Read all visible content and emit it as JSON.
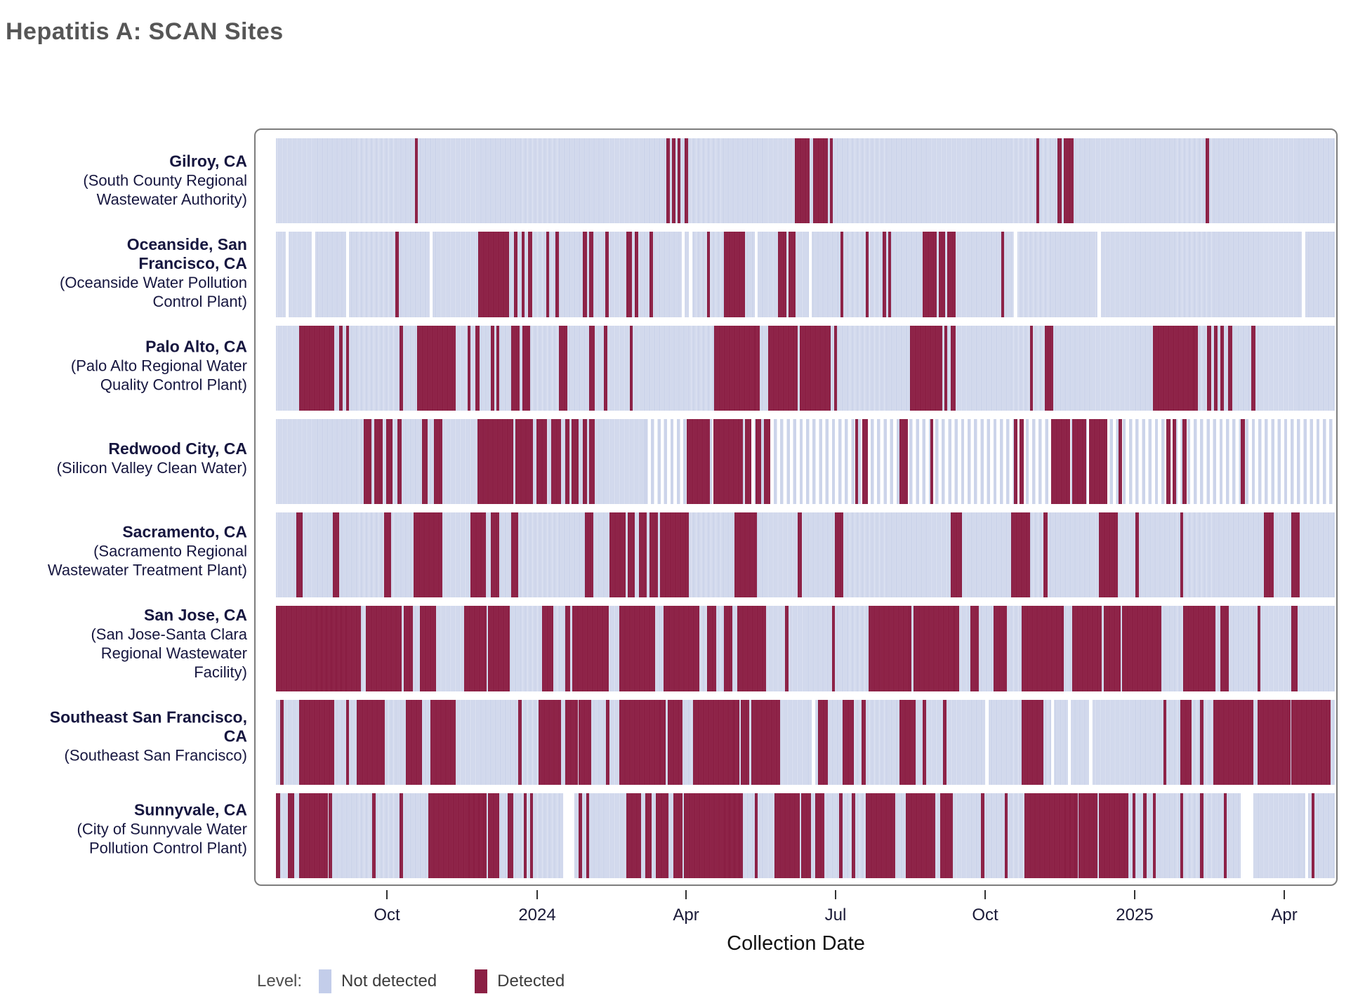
{
  "title": "Hepatitis A: SCAN Sites",
  "axis": {
    "x_label": "Collection Date",
    "ticks": [
      {
        "label": "Oct",
        "pos": 10.48
      },
      {
        "label": "2024",
        "pos": 24.67
      },
      {
        "label": "Apr",
        "pos": 38.73
      },
      {
        "label": "Jul",
        "pos": 52.85
      },
      {
        "label": "Oct",
        "pos": 66.98
      },
      {
        "label": "2025",
        "pos": 81.1
      },
      {
        "label": "Apr",
        "pos": 95.23
      }
    ]
  },
  "legend": {
    "label": "Level:",
    "items": [
      {
        "label": "Not detected",
        "color": "#c3cdea"
      },
      {
        "label": "Detected",
        "color": "#8b1f44"
      }
    ]
  },
  "colors": {
    "not_detected": "#ccd4ea",
    "detected": "#8b1f44",
    "missing": "#ffffff",
    "panel_border": "#7d7d7d",
    "label_text": "#16163f",
    "title_text": "#565656"
  },
  "chart_data": {
    "type": "heatmap",
    "x_unit": "collection date (daily tiles)",
    "x_range_approx": [
      "Jul 2023",
      "May 2025"
    ],
    "states": {
      "d": "Detected",
      "background": "Not detected",
      "gap": "No sample",
      "sparse": "Intermittent sampling"
    },
    "sites": [
      {
        "city": "Gilroy, CA",
        "facility": "(South County Regional Wastewater Authority)",
        "detected": [
          [
            13.1,
            13.4
          ],
          [
            36.9,
            37.2
          ],
          [
            37.4,
            37.7
          ],
          [
            37.9,
            38.2
          ],
          [
            38.6,
            38.9
          ],
          [
            49.0,
            50.4
          ],
          [
            50.7,
            52.1
          ],
          [
            52.3,
            52.6
          ],
          [
            71.8,
            72.1
          ],
          [
            73.8,
            74.2
          ],
          [
            74.4,
            75.3
          ],
          [
            87.8,
            88.1
          ]
        ],
        "gaps": [],
        "sparse": []
      },
      {
        "city": "Oceanside, San Francisco, CA",
        "facility": "(Oceanside Water Pollution Control Plant)",
        "detected": [
          [
            11.3,
            11.6
          ],
          [
            19.1,
            22.0
          ],
          [
            22.5,
            22.8
          ],
          [
            23.2,
            23.5
          ],
          [
            23.8,
            24.2
          ],
          [
            25.5,
            25.8
          ],
          [
            26.4,
            26.7
          ],
          [
            29.0,
            29.4
          ],
          [
            29.6,
            30.0
          ],
          [
            31.1,
            31.4
          ],
          [
            33.1,
            33.6
          ],
          [
            33.9,
            34.2
          ],
          [
            35.3,
            35.6
          ],
          [
            40.7,
            41.0
          ],
          [
            42.3,
            44.3
          ],
          [
            47.4,
            48.2
          ],
          [
            48.4,
            49.1
          ],
          [
            53.3,
            53.6
          ],
          [
            55.7,
            56.0
          ],
          [
            57.3,
            57.6
          ],
          [
            57.8,
            58.1
          ],
          [
            61.1,
            62.4
          ],
          [
            62.6,
            63.2
          ],
          [
            63.4,
            64.2
          ],
          [
            68.5,
            68.8
          ]
        ],
        "gaps": [
          [
            0.9,
            1.2
          ],
          [
            3.4,
            3.7
          ],
          [
            6.6,
            6.9
          ],
          [
            14.5,
            14.8
          ],
          [
            38.3,
            38.6
          ],
          [
            39.0,
            39.3
          ],
          [
            45.2,
            45.5
          ],
          [
            50.3,
            50.6
          ],
          [
            69.7,
            70.0
          ],
          [
            77.6,
            77.9
          ],
          [
            96.9,
            97.2
          ]
        ],
        "sparse": []
      },
      {
        "city": "Palo Alto, CA",
        "facility": "(Palo Alto Regional Water Quality Control Plant)",
        "detected": [
          [
            2.2,
            5.5
          ],
          [
            6.0,
            6.3
          ],
          [
            6.6,
            6.9
          ],
          [
            11.7,
            12.0
          ],
          [
            13.3,
            17.0
          ],
          [
            18.1,
            18.4
          ],
          [
            18.8,
            19.2
          ],
          [
            20.3,
            20.6
          ],
          [
            20.8,
            21.1
          ],
          [
            22.2,
            23.0
          ],
          [
            23.3,
            24.0
          ],
          [
            26.7,
            27.5
          ],
          [
            29.6,
            30.1
          ],
          [
            31.0,
            31.3
          ],
          [
            33.4,
            33.7
          ],
          [
            41.4,
            45.7
          ],
          [
            46.5,
            49.3
          ],
          [
            49.5,
            52.4
          ],
          [
            52.7,
            53.0
          ],
          [
            59.9,
            62.9
          ],
          [
            63.1,
            63.4
          ],
          [
            63.7,
            64.2
          ],
          [
            71.2,
            71.5
          ],
          [
            72.6,
            73.4
          ],
          [
            82.8,
            87.1
          ],
          [
            87.9,
            88.3
          ],
          [
            88.6,
            88.9
          ],
          [
            89.2,
            89.5
          ],
          [
            89.9,
            90.3
          ],
          [
            92.1,
            92.5
          ]
        ],
        "gaps": [],
        "sparse": []
      },
      {
        "city": "Redwood City, CA",
        "facility": "(Silicon Valley Clean Water)",
        "detected": [
          [
            8.3,
            9.0
          ],
          [
            9.3,
            10.1
          ],
          [
            10.4,
            11.0
          ],
          [
            11.5,
            11.9
          ],
          [
            13.8,
            14.3
          ],
          [
            14.9,
            15.7
          ],
          [
            19.0,
            22.4
          ],
          [
            22.6,
            24.3
          ],
          [
            24.6,
            25.6
          ],
          [
            26.0,
            26.9
          ],
          [
            27.3,
            27.7
          ],
          [
            27.9,
            28.6
          ],
          [
            29.0,
            29.4
          ],
          [
            29.6,
            30.1
          ],
          [
            38.8,
            41.0
          ],
          [
            41.3,
            44.1
          ],
          [
            44.3,
            44.9
          ],
          [
            45.3,
            45.8
          ],
          [
            46.1,
            46.7
          ],
          [
            54.7,
            55.0
          ],
          [
            55.4,
            55.9
          ],
          [
            58.9,
            59.7
          ],
          [
            61.8,
            62.1
          ],
          [
            69.7,
            70.0
          ],
          [
            70.2,
            70.6
          ],
          [
            73.2,
            75.0
          ],
          [
            75.2,
            76.5
          ],
          [
            76.8,
            78.5
          ],
          [
            79.6,
            79.9
          ],
          [
            84.1,
            84.5
          ],
          [
            84.7,
            85.0
          ],
          [
            85.6,
            86.0
          ],
          [
            91.1,
            91.5
          ]
        ],
        "gaps": [],
        "sparse": [
          [
            34.8,
            100
          ]
        ]
      },
      {
        "city": "Sacramento, CA",
        "facility": "(Sacramento Regional Wastewater Treatment Plant)",
        "detected": [
          [
            1.9,
            2.5
          ],
          [
            5.4,
            6.0
          ],
          [
            10.2,
            10.9
          ],
          [
            13.0,
            15.7
          ],
          [
            18.4,
            19.8
          ],
          [
            20.3,
            21.1
          ],
          [
            22.2,
            22.9
          ],
          [
            29.2,
            30.0
          ],
          [
            31.5,
            33.0
          ],
          [
            33.2,
            33.9
          ],
          [
            34.3,
            35.0
          ],
          [
            35.3,
            36.1
          ],
          [
            36.3,
            39.0
          ],
          [
            43.3,
            45.4
          ],
          [
            49.3,
            49.7
          ],
          [
            52.8,
            53.6
          ],
          [
            63.7,
            64.8
          ],
          [
            69.4,
            71.2
          ],
          [
            72.5,
            72.9
          ],
          [
            77.7,
            79.5
          ],
          [
            81.2,
            81.5
          ],
          [
            85.4,
            85.7
          ],
          [
            93.3,
            94.2
          ],
          [
            95.9,
            96.7
          ]
        ],
        "gaps": [],
        "sparse": []
      },
      {
        "city": "San Jose, CA",
        "facility": "(San Jose-Santa Clara Regional Wastewater Facility)",
        "detected": [
          [
            0.0,
            8.0
          ],
          [
            8.5,
            11.9
          ],
          [
            12.1,
            12.9
          ],
          [
            13.6,
            15.1
          ],
          [
            17.8,
            19.9
          ],
          [
            20.0,
            22.1
          ],
          [
            25.1,
            26.2
          ],
          [
            27.3,
            27.8
          ],
          [
            28.0,
            31.4
          ],
          [
            32.4,
            35.8
          ],
          [
            36.6,
            40.0
          ],
          [
            40.7,
            41.6
          ],
          [
            42.3,
            43.1
          ],
          [
            43.6,
            46.3
          ],
          [
            48.1,
            48.4
          ],
          [
            52.5,
            52.8
          ],
          [
            56.0,
            60.0
          ],
          [
            60.2,
            64.5
          ],
          [
            65.6,
            66.4
          ],
          [
            67.8,
            69.0
          ],
          [
            70.4,
            74.4
          ],
          [
            75.2,
            78.0
          ],
          [
            78.2,
            79.8
          ],
          [
            79.9,
            83.6
          ],
          [
            85.7,
            88.7
          ],
          [
            89.2,
            90.0
          ],
          [
            92.7,
            93.0
          ],
          [
            95.9,
            96.5
          ]
        ],
        "gaps": [],
        "sparse": []
      },
      {
        "city": "Southeast San Francisco, CA",
        "facility": "(Southeast San Francisco)",
        "detected": [
          [
            0.4,
            0.7
          ],
          [
            2.2,
            5.5
          ],
          [
            6.6,
            6.9
          ],
          [
            7.6,
            10.3
          ],
          [
            12.3,
            13.8
          ],
          [
            14.6,
            17.0
          ],
          [
            22.9,
            23.2
          ],
          [
            24.8,
            26.9
          ],
          [
            27.3,
            28.5
          ],
          [
            28.6,
            29.8
          ],
          [
            31.2,
            31.5
          ],
          [
            32.4,
            36.8
          ],
          [
            37.0,
            38.4
          ],
          [
            39.4,
            43.8
          ],
          [
            43.9,
            44.7
          ],
          [
            44.9,
            47.6
          ],
          [
            51.2,
            52.1
          ],
          [
            53.5,
            54.6
          ],
          [
            55.3,
            55.7
          ],
          [
            58.9,
            60.4
          ],
          [
            61.1,
            61.4
          ],
          [
            63.0,
            63.3
          ],
          [
            70.4,
            72.5
          ],
          [
            83.8,
            84.1
          ],
          [
            85.4,
            86.5
          ],
          [
            87.3,
            87.6
          ],
          [
            88.5,
            92.3
          ],
          [
            92.7,
            95.8
          ],
          [
            95.9,
            99.6
          ]
        ],
        "gaps": [
          [
            50.6,
            50.9
          ],
          [
            67.0,
            67.3
          ],
          [
            73.2,
            73.5
          ],
          [
            74.8,
            75.1
          ],
          [
            76.8,
            77.1
          ]
        ],
        "sparse": []
      },
      {
        "city": "Sunnyvale, CA",
        "facility": "(City of Sunnyvale Water Pollution Control Plant)",
        "detected": [
          [
            0.0,
            0.4
          ],
          [
            1.1,
            1.7
          ],
          [
            2.2,
            4.9
          ],
          [
            5.0,
            5.3
          ],
          [
            9.1,
            9.4
          ],
          [
            11.7,
            12.0
          ],
          [
            14.4,
            19.9
          ],
          [
            20.0,
            21.1
          ],
          [
            21.9,
            22.4
          ],
          [
            23.4,
            23.7
          ],
          [
            24.0,
            24.3
          ],
          [
            28.6,
            28.9
          ],
          [
            29.3,
            29.6
          ],
          [
            33.1,
            34.5
          ],
          [
            34.9,
            35.5
          ],
          [
            35.9,
            37.1
          ],
          [
            37.5,
            38.4
          ],
          [
            38.5,
            44.1
          ],
          [
            45.2,
            45.5
          ],
          [
            47.1,
            49.5
          ],
          [
            49.6,
            50.5
          ],
          [
            50.9,
            51.8
          ],
          [
            53.2,
            53.5
          ],
          [
            54.4,
            54.7
          ],
          [
            55.7,
            58.5
          ],
          [
            59.5,
            62.3
          ],
          [
            62.7,
            63.9
          ],
          [
            66.6,
            66.9
          ],
          [
            68.8,
            69.1
          ],
          [
            70.7,
            75.7
          ],
          [
            75.8,
            77.6
          ],
          [
            77.7,
            80.5
          ],
          [
            80.9,
            81.2
          ],
          [
            81.9,
            82.2
          ],
          [
            82.8,
            83.1
          ],
          [
            85.4,
            85.7
          ],
          [
            87.3,
            87.6
          ],
          [
            89.5,
            89.8
          ],
          [
            97.8,
            98.1
          ]
        ],
        "gaps": [
          [
            27.1,
            28.2
          ],
          [
            91.1,
            92.3
          ],
          [
            97.2,
            97.5
          ]
        ],
        "sparse": []
      }
    ]
  }
}
